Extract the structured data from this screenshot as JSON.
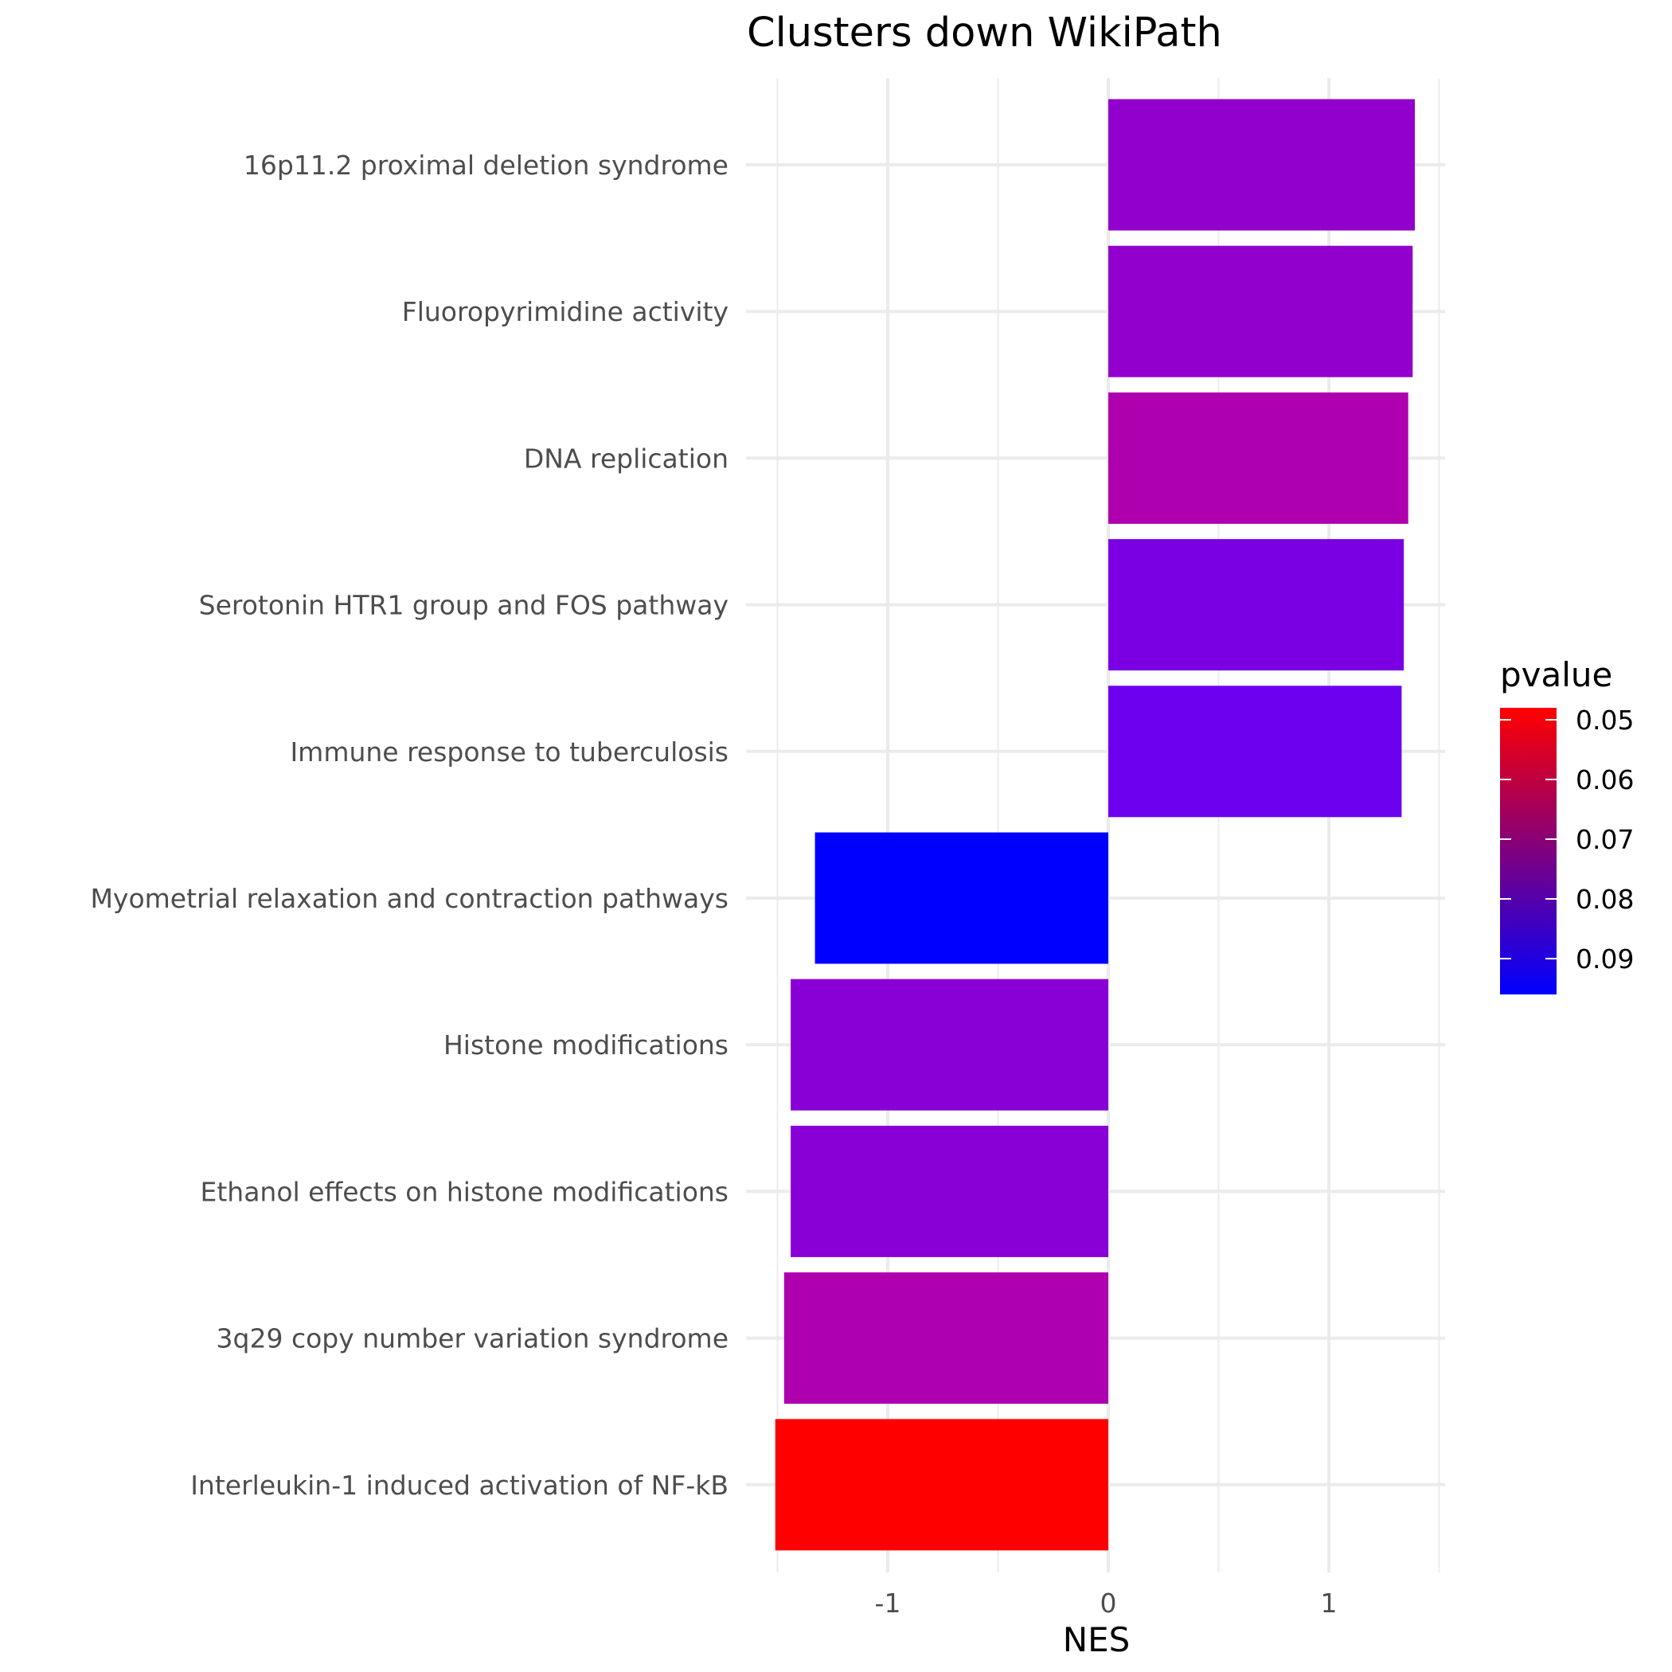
{
  "chart_data": {
    "type": "bar",
    "orientation": "horizontal",
    "title": "Clusters down WikiPath",
    "xlabel": "NES",
    "ylabel": "",
    "xlim": [
      -1.55,
      1.53
    ],
    "xticks": [
      -1,
      0,
      1
    ],
    "xtick_labels": [
      "-1",
      "0",
      "1"
    ],
    "grid": true,
    "categories": [
      "16p11.2 proximal deletion syndrome",
      "Fluoropyrimidine activity",
      "DNA replication",
      "Serotonin HTR1 group and FOS pathway",
      "Immune response to tuberculosis",
      "Myometrial relaxation and contraction pathways",
      "Histone modifications",
      "Ethanol effects on histone modifications",
      "3q29 copy number variation syndrome",
      "Interleukin-1 induced activation of NF-kB"
    ],
    "values": [
      1.39,
      1.38,
      1.36,
      1.34,
      1.33,
      -1.33,
      -1.44,
      -1.44,
      -1.47,
      -1.51
    ],
    "pvalue": [
      0.08,
      0.08,
      0.075,
      0.085,
      0.088,
      0.093,
      0.081,
      0.081,
      0.075,
      0.052
    ],
    "colors": [
      "#9100CC",
      "#9100CC",
      "#AE00AE",
      "#7A00E3",
      "#6C00EF",
      "#0000FF",
      "#8900D6",
      "#8900D6",
      "#AE00AE",
      "#FF0000"
    ],
    "legend": {
      "title": "pvalue",
      "position": "right",
      "low_color": "#FF0000",
      "high_color": "#0000FF",
      "range": [
        0.048,
        0.096
      ],
      "ticks": [
        0.05,
        0.06,
        0.07,
        0.08,
        0.09
      ],
      "tick_labels": [
        "0.05",
        "0.06",
        "0.07",
        "0.08",
        "0.09"
      ]
    }
  }
}
